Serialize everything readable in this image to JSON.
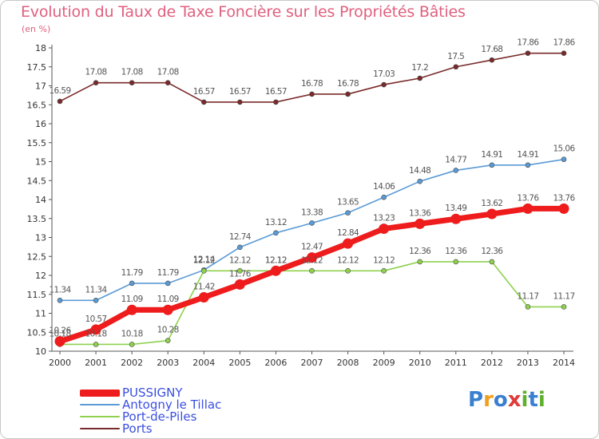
{
  "header": {
    "title": "Evolution du Taux de Taxe Foncière sur les Propriétés Bâties",
    "unit": "(en %)"
  },
  "logo": {
    "text": "Proxiti",
    "colors": [
      "#3a7fd0",
      "#f0a020",
      "#3a7fd0",
      "#e03a3a",
      "#60b030",
      "#3a7fd0",
      "#60b030"
    ]
  },
  "chart_data": {
    "type": "line",
    "x": [
      2000,
      2001,
      2002,
      2003,
      2004,
      2005,
      2006,
      2007,
      2008,
      2009,
      2010,
      2011,
      2012,
      2013,
      2014
    ],
    "xticks": [
      "2000",
      "2001",
      "2002",
      "2003",
      "2004",
      "2005",
      "2006",
      "2007",
      "2008",
      "2009",
      "2010",
      "2011",
      "2012",
      "2013",
      "2014"
    ],
    "ylim": [
      10,
      18
    ],
    "yticks": [
      "10",
      "10.5",
      "11",
      "11.5",
      "12",
      "12.5",
      "13",
      "13.5",
      "14",
      "14.5",
      "15",
      "15.5",
      "16",
      "16.5",
      "17",
      "17.5",
      "18"
    ],
    "grid": false,
    "legend_position": "bottom-left",
    "series": [
      {
        "name": "PUSSIGNY",
        "color": "#ee1c1c",
        "values": [
          10.26,
          10.57,
          11.09,
          11.09,
          11.42,
          11.76,
          12.12,
          12.47,
          12.84,
          13.23,
          13.36,
          13.49,
          13.62,
          13.76,
          13.76
        ],
        "labels": [
          "10.26",
          "10.57",
          "11.09",
          "11.09",
          "11.42",
          "11.76",
          "12.12",
          "12.47",
          "12.84",
          "13.23",
          "13.36",
          "13.49",
          "13.62",
          "13.76",
          "13.76"
        ]
      },
      {
        "name": "Antogny le Tillac",
        "color": "#5b9bd5",
        "values": [
          11.34,
          11.34,
          11.79,
          11.79,
          12.14,
          12.74,
          13.12,
          13.38,
          13.65,
          14.06,
          14.48,
          14.77,
          14.91,
          14.91,
          15.06
        ],
        "labels": [
          "11.34",
          "11.34",
          "11.79",
          "11.79",
          "12.14",
          "12.74",
          "13.12",
          "13.38",
          "13.65",
          "14.06",
          "14.48",
          "14.77",
          "14.91",
          "14.91",
          "15.06"
        ]
      },
      {
        "name": "Port-de-Piles",
        "color": "#8fd14f",
        "values": [
          10.18,
          10.18,
          10.18,
          10.28,
          12.12,
          12.12,
          12.12,
          12.12,
          12.12,
          12.12,
          12.36,
          12.36,
          12.36,
          11.17,
          11.17
        ],
        "labels": [
          "10.18",
          "10.18",
          "10.18",
          "10.28",
          "12.12",
          "12.12",
          "12.12",
          "12.12",
          "12.12",
          "12.12",
          "12.36",
          "12.36",
          "12.36",
          "11.17",
          "11.17"
        ]
      },
      {
        "name": "Ports",
        "color": "#7a2a2a",
        "values": [
          16.59,
          17.08,
          17.08,
          17.08,
          16.57,
          16.57,
          16.57,
          16.78,
          16.78,
          17.03,
          17.2,
          17.5,
          17.68,
          17.86,
          17.86
        ],
        "labels": [
          "16.59",
          "17.08",
          "17.08",
          "17.08",
          "16.57",
          "16.57",
          "16.57",
          "16.78",
          "16.78",
          "17.03",
          "17.2",
          "17.5",
          "17.68",
          "17.86",
          "17.86"
        ]
      }
    ]
  }
}
